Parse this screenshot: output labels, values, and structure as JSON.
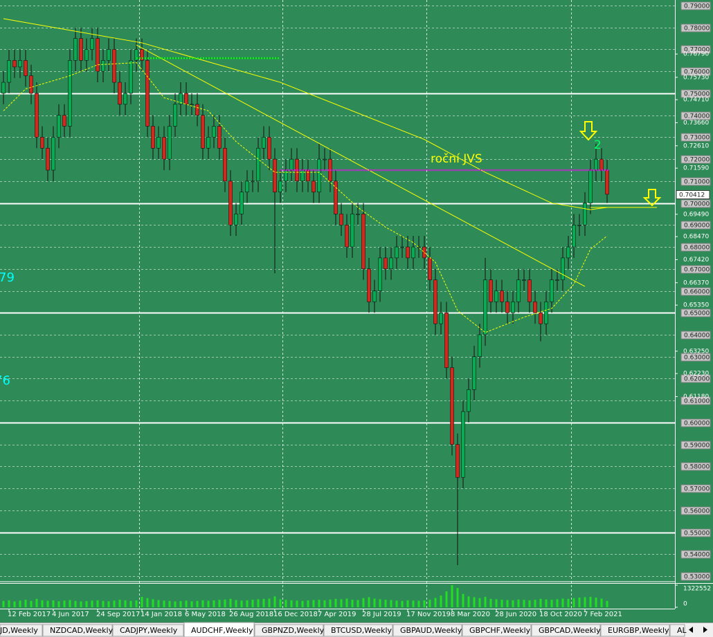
{
  "tabs": [
    "JD,Weekly",
    "NZDCAD,Weekly",
    "CADJPY,Weekly",
    "AUDCHF,Weekly",
    "GBPNZD,Weekly",
    "BTCUSD,Weekly",
    "GBPAUD,Weekly",
    "GBPCHF,Weekly",
    "GBPCAD,Weekly",
    "EURGBP,Weekly",
    "AL"
  ],
  "active_tab": 3,
  "chart_data": {
    "type": "candlestick",
    "background": "#2e8b57",
    "up_color": "#00b050",
    "down_color": "#d9261c",
    "volume_color": "#22dd22",
    "categories": [
      null,
      "12 Feb 2017",
      null,
      null,
      null,
      null,
      null,
      null,
      null,
      "4 Jun 2017",
      null,
      null,
      null,
      null,
      null,
      null,
      null,
      "24 Sep 2017",
      null,
      null,
      null,
      null,
      null,
      null,
      null,
      "14 Jan 2018",
      null,
      null,
      null,
      null,
      null,
      null,
      null,
      "6 May 2018",
      null,
      null,
      null,
      null,
      null,
      null,
      null,
      "26 Aug 2018",
      null,
      null,
      null,
      null,
      null,
      null,
      null,
      "16 Dec 2018",
      null,
      null,
      null,
      null,
      null,
      null,
      null,
      "7 Apr 2019",
      null,
      null,
      null,
      null,
      null,
      null,
      null,
      "28 Jul 2019",
      null,
      null,
      null,
      null,
      null,
      null,
      null,
      "17 Nov 2019",
      null,
      null,
      null,
      null,
      null,
      null,
      null,
      "8 Mar 2020",
      null,
      null,
      null,
      null,
      null,
      null,
      null,
      "28 Jun 2020",
      null,
      null,
      null,
      null,
      null,
      null,
      null,
      "18 Oct 2020",
      null,
      null,
      null,
      null,
      null,
      null,
      null,
      "7 Feb 2021",
      null,
      null,
      null,
      null
    ],
    "open": [
      0.75,
      0.755,
      0.765,
      0.762,
      0.765,
      0.758,
      0.75,
      0.73,
      0.725,
      0.715,
      0.73,
      0.74,
      0.735,
      0.765,
      0.775,
      0.765,
      0.77,
      0.775,
      0.76,
      0.765,
      0.77,
      0.755,
      0.745,
      0.75,
      0.765,
      0.77,
      0.765,
      0.735,
      0.725,
      0.73,
      0.72,
      0.735,
      0.745,
      0.75,
      0.745,
      0.745,
      0.74,
      0.725,
      0.73,
      0.735,
      0.725,
      0.71,
      0.69,
      0.695,
      0.705,
      0.71,
      0.71,
      0.725,
      0.73,
      0.72,
      0.705,
      0.71,
      0.715,
      0.72,
      0.71,
      0.715,
      0.71,
      0.705,
      0.72,
      0.72,
      0.71,
      0.695,
      0.69,
      0.68,
      0.695,
      0.695,
      0.67,
      0.655,
      0.66,
      0.675,
      0.67,
      0.675,
      0.68,
      0.68,
      0.675,
      0.68,
      0.68,
      0.675,
      0.665,
      0.645,
      0.65,
      0.625,
      0.59,
      0.575,
      0.605,
      0.615,
      0.63,
      0.64,
      0.665,
      0.655,
      0.66,
      0.655,
      0.65,
      0.655,
      0.665,
      0.665,
      0.655,
      0.65,
      0.645,
      0.655,
      0.665,
      0.665,
      0.675,
      0.68,
      0.69,
      0.69,
      0.7,
      0.715,
      0.72,
      0.715
    ],
    "high": [
      0.76,
      0.77,
      0.77,
      0.77,
      0.77,
      0.763,
      0.755,
      0.735,
      0.73,
      0.735,
      0.745,
      0.745,
      0.77,
      0.78,
      0.78,
      0.775,
      0.78,
      0.78,
      0.77,
      0.775,
      0.775,
      0.76,
      0.755,
      0.77,
      0.775,
      0.775,
      0.77,
      0.74,
      0.735,
      0.735,
      0.74,
      0.75,
      0.755,
      0.755,
      0.75,
      0.75,
      0.745,
      0.735,
      0.74,
      0.74,
      0.73,
      0.715,
      0.7,
      0.71,
      0.715,
      0.715,
      0.73,
      0.735,
      0.735,
      0.725,
      0.715,
      0.72,
      0.725,
      0.725,
      0.72,
      0.72,
      0.715,
      0.727,
      0.725,
      0.725,
      0.715,
      0.7,
      0.695,
      0.7,
      0.7,
      0.7,
      0.675,
      0.665,
      0.68,
      0.68,
      0.68,
      0.685,
      0.685,
      0.685,
      0.685,
      0.685,
      0.685,
      0.68,
      0.67,
      0.655,
      0.655,
      0.63,
      0.595,
      0.61,
      0.62,
      0.635,
      0.645,
      0.675,
      0.67,
      0.665,
      0.665,
      0.66,
      0.66,
      0.67,
      0.67,
      0.67,
      0.66,
      0.655,
      0.66,
      0.67,
      0.67,
      0.68,
      0.685,
      0.695,
      0.695,
      0.705,
      0.72,
      0.727,
      0.725,
      0.72
    ],
    "low": [
      0.745,
      0.75,
      0.757,
      0.757,
      0.753,
      0.745,
      0.725,
      0.72,
      0.71,
      0.71,
      0.725,
      0.73,
      0.73,
      0.76,
      0.76,
      0.76,
      0.765,
      0.755,
      0.755,
      0.76,
      0.75,
      0.74,
      0.74,
      0.745,
      0.76,
      0.76,
      0.73,
      0.72,
      0.72,
      0.715,
      0.715,
      0.73,
      0.74,
      0.74,
      0.74,
      0.735,
      0.72,
      0.72,
      0.725,
      0.72,
      0.705,
      0.685,
      0.685,
      0.69,
      0.7,
      0.705,
      0.705,
      0.72,
      0.715,
      0.668,
      0.7,
      0.705,
      0.71,
      0.705,
      0.705,
      0.705,
      0.7,
      0.7,
      0.715,
      0.705,
      0.69,
      0.685,
      0.675,
      0.675,
      0.69,
      0.665,
      0.65,
      0.65,
      0.655,
      0.665,
      0.665,
      0.67,
      0.675,
      0.67,
      0.67,
      0.675,
      0.67,
      0.66,
      0.64,
      0.64,
      0.62,
      0.585,
      0.535,
      0.57,
      0.6,
      0.61,
      0.625,
      0.635,
      0.65,
      0.65,
      0.65,
      0.645,
      0.645,
      0.65,
      0.66,
      0.65,
      0.645,
      0.637,
      0.64,
      0.65,
      0.66,
      0.66,
      0.67,
      0.675,
      0.685,
      0.685,
      0.695,
      0.71,
      0.71,
      0.7
    ],
    "close": [
      0.755,
      0.765,
      0.762,
      0.765,
      0.758,
      0.75,
      0.73,
      0.725,
      0.715,
      0.73,
      0.74,
      0.735,
      0.765,
      0.775,
      0.765,
      0.77,
      0.775,
      0.76,
      0.765,
      0.77,
      0.755,
      0.745,
      0.75,
      0.765,
      0.77,
      0.765,
      0.735,
      0.725,
      0.73,
      0.72,
      0.735,
      0.745,
      0.75,
      0.745,
      0.745,
      0.74,
      0.725,
      0.73,
      0.735,
      0.725,
      0.71,
      0.69,
      0.695,
      0.705,
      0.71,
      0.71,
      0.725,
      0.73,
      0.72,
      0.705,
      0.71,
      0.715,
      0.72,
      0.71,
      0.715,
      0.71,
      0.705,
      0.72,
      0.72,
      0.71,
      0.695,
      0.69,
      0.68,
      0.695,
      0.695,
      0.67,
      0.655,
      0.66,
      0.675,
      0.67,
      0.675,
      0.68,
      0.68,
      0.675,
      0.68,
      0.68,
      0.675,
      0.665,
      0.645,
      0.65,
      0.625,
      0.59,
      0.575,
      0.605,
      0.615,
      0.63,
      0.64,
      0.665,
      0.655,
      0.66,
      0.655,
      0.65,
      0.655,
      0.665,
      0.665,
      0.655,
      0.65,
      0.645,
      0.655,
      0.665,
      0.665,
      0.675,
      0.68,
      0.69,
      0.69,
      0.7,
      0.715,
      0.72,
      0.715,
      0.704
    ],
    "volume": [
      380000,
      420000,
      350000,
      400000,
      450000,
      380000,
      500000,
      420000,
      390000,
      410000,
      360000,
      400000,
      430000,
      380000,
      350000,
      370000,
      400000,
      420000,
      380000,
      360000,
      400000,
      450000,
      420000,
      380000,
      410000,
      620000,
      550000,
      480000,
      430000,
      400000,
      380000,
      350000,
      370000,
      400000,
      360000,
      380000,
      420000,
      390000,
      410000,
      440000,
      460000,
      500000,
      430000,
      400000,
      420000,
      450000,
      480000,
      500000,
      520000,
      650000,
      480000,
      440000,
      420000,
      400000,
      380000,
      410000,
      430000,
      450000,
      420000,
      460000,
      500000,
      480000,
      520000,
      450000,
      430000,
      550000,
      600000,
      520000,
      480000,
      450000,
      430000,
      400000,
      380000,
      420000,
      400000,
      390000,
      410000,
      450000,
      560000,
      700000,
      950000,
      1322552,
      1150000,
      800000,
      650000,
      600000,
      550000,
      620000,
      500000,
      480000,
      450000,
      430000,
      420000,
      460000,
      440000,
      420000,
      450000,
      500000,
      470000,
      450000,
      480000,
      520000,
      500000,
      550000,
      580000,
      600000,
      620000,
      580000,
      520000,
      380000
    ],
    "volume_lim": [
      0,
      1322552
    ],
    "volume_ticks": [
      1322552,
      0
    ],
    "ylim": [
      0.53,
      0.79
    ],
    "yticks": [
      {
        "value": 0.7679,
        "label": "0.76790"
      },
      {
        "value": 0.7573,
        "label": "0.75730"
      },
      {
        "value": 0.7471,
        "label": "0.74710"
      },
      {
        "value": 0.7366,
        "label": "0.73660"
      },
      {
        "value": 0.7261,
        "label": "0.72610"
      },
      {
        "value": 0.7159,
        "label": "0.71590"
      },
      {
        "value": 0.6949,
        "label": "0.69490"
      },
      {
        "value": 0.6847,
        "label": "0.68470"
      },
      {
        "value": 0.6742,
        "label": "0.67420"
      },
      {
        "value": 0.6637,
        "label": "0.66370"
      },
      {
        "value": 0.6535,
        "label": "0.65350"
      },
      {
        "value": 0.6325,
        "label": "0.63250"
      },
      {
        "value": 0.6223,
        "label": "0.62230"
      },
      {
        "value": 0.6118,
        "label": "0.61180"
      }
    ],
    "levels": [
      {
        "value": 0.79,
        "label": "0.79000",
        "style": "dash"
      },
      {
        "value": 0.78,
        "label": "0.78000",
        "style": "dash"
      },
      {
        "value": 0.77,
        "label": "0.77000",
        "style": "dash"
      },
      {
        "value": 0.76,
        "label": "0.76000",
        "style": "dash"
      },
      {
        "value": 0.75,
        "label": "0.75000",
        "style": "solid"
      },
      {
        "value": 0.74,
        "label": "0.74000",
        "style": "dash"
      },
      {
        "value": 0.73,
        "label": "0.73000",
        "style": "dash"
      },
      {
        "value": 0.72,
        "label": "0.72000",
        "style": "dash"
      },
      {
        "value": 0.71,
        "label": "0.71000",
        "style": "dash"
      },
      {
        "value": 0.7,
        "label": "0.70000",
        "style": "solid"
      },
      {
        "value": 0.69,
        "label": "0.69000",
        "style": "dash"
      },
      {
        "value": 0.68,
        "label": "0.68000",
        "style": "dash"
      },
      {
        "value": 0.67,
        "label": "0.67000",
        "style": "dash"
      },
      {
        "value": 0.66,
        "label": "0.66000",
        "style": "dash"
      },
      {
        "value": 0.65,
        "label": "0.65000",
        "style": "solid"
      },
      {
        "value": 0.64,
        "label": "0.64000",
        "style": "dash"
      },
      {
        "value": 0.63,
        "label": "0.63000",
        "style": "dash"
      },
      {
        "value": 0.62,
        "label": "0.62000",
        "style": "dash"
      },
      {
        "value": 0.61,
        "label": "0.61000",
        "style": "dash"
      },
      {
        "value": 0.6,
        "label": "0.60000",
        "style": "solid"
      },
      {
        "value": 0.59,
        "label": "0.59000",
        "style": "dash"
      },
      {
        "value": 0.58,
        "label": "0.58000",
        "style": "dash"
      },
      {
        "value": 0.57,
        "label": "0.57000",
        "style": "dash"
      },
      {
        "value": 0.56,
        "label": "0.56000",
        "style": "dash"
      },
      {
        "value": 0.55,
        "label": "0.55000",
        "style": "solid"
      },
      {
        "value": 0.54,
        "label": "0.54000",
        "style": "dash"
      },
      {
        "value": 0.53,
        "label": "0.53000",
        "style": "dash"
      }
    ],
    "current_price": {
      "value": 0.70412,
      "label": "0.70412"
    },
    "xgrid": [
      24.5,
      50.4,
      76.4,
      102.5
    ],
    "lines": [
      {
        "color": "#ffff00",
        "style": "solid",
        "x": [
          0,
          25,
          50,
          76,
          87,
          99,
          106,
          109
        ],
        "values": [
          0.784,
          0.773,
          0.755,
          0.729,
          0.714,
          0.7,
          0.697,
          0.698
        ]
      },
      {
        "color": "#ffff00",
        "style": "dash",
        "x": [
          0,
          4,
          12,
          17,
          24,
          29,
          37,
          42,
          49,
          57,
          64,
          69,
          74,
          78,
          82,
          87,
          94,
          99,
          103,
          106,
          109
        ],
        "values": [
          0.742,
          0.752,
          0.758,
          0.763,
          0.764,
          0.748,
          0.742,
          0.728,
          0.714,
          0.714,
          0.698,
          0.689,
          0.682,
          0.673,
          0.651,
          0.641,
          0.648,
          0.652,
          0.663,
          0.679,
          0.685
        ]
      },
      {
        "color": "#ffff00",
        "style": "solid",
        "x": [
          24,
          105
        ],
        "values": [
          0.772,
          0.662
        ]
      },
      {
        "color": "#ff00ff",
        "style": "dotted",
        "x": [
          50,
          109.5
        ],
        "values": [
          0.715,
          0.715
        ]
      },
      {
        "color": "#00ff00",
        "style": "dotted",
        "x": [
          24,
          50
        ],
        "values": [
          0.766,
          0.766
        ]
      },
      {
        "color": "#ffff00",
        "style": "solid",
        "x": [
          106,
          118
        ],
        "values": [
          0.698,
          0.698
        ]
      }
    ],
    "annotations": {
      "jvs": "roční JVS",
      "wave": "2",
      "left_top": "79",
      "left_bottom": "76"
    }
  }
}
